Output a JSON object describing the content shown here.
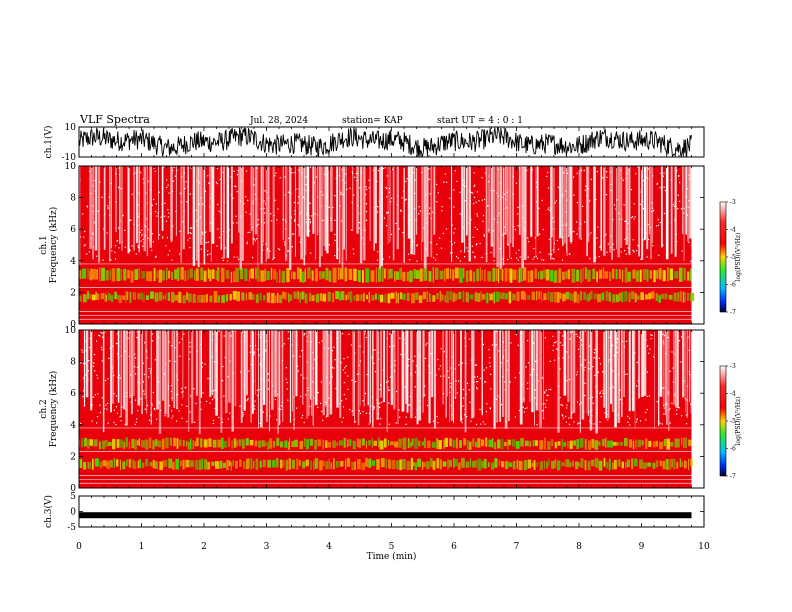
{
  "header": {
    "title": "VLF Spectra",
    "date": "Jul. 28, 2024",
    "station": "station= KAP",
    "start": "start UT =  4 : 0  : 1"
  },
  "chart_data": [
    {
      "type": "line",
      "panel": "ch1-waveform",
      "ylabel": "ch.1(V)",
      "ylim": [
        -10,
        10
      ],
      "xlim": [
        0,
        10
      ],
      "yticks": [
        "10",
        "-10"
      ],
      "data_end_min": 9.8
    },
    {
      "type": "heatmap",
      "panel": "ch1-spectrogram",
      "ylabel": "ch.1\nFrequency (kHz)",
      "ylim": [
        0,
        10
      ],
      "xlim": [
        0,
        10
      ],
      "yticks": [
        "0",
        "2",
        "4",
        "6",
        "8",
        "10"
      ],
      "data_end_min": 9.8,
      "colorbar": {
        "label": "log(PSD)(V²/Hz)",
        "ticks": [
          "-3",
          "-4",
          "-5",
          "-6",
          "-7"
        ],
        "range": [
          -7,
          -3
        ]
      }
    },
    {
      "type": "heatmap",
      "panel": "ch2-spectrogram",
      "ylabel": "ch.2\nFrequency (kHz)",
      "ylim": [
        0,
        10
      ],
      "xlim": [
        0,
        10
      ],
      "yticks": [
        "0",
        "2",
        "4",
        "6",
        "8",
        "10"
      ],
      "data_end_min": 9.8,
      "colorbar": {
        "label": "log(PSD)(V²/Hz)",
        "ticks": [
          "-3",
          "-4",
          "-5",
          "-6",
          "-7"
        ],
        "range": [
          -7,
          -3
        ]
      }
    },
    {
      "type": "line",
      "panel": "ch3-waveform",
      "ylabel": "ch.3(V)",
      "ylim": [
        -5,
        5
      ],
      "xlim": [
        0,
        10
      ],
      "yticks": [
        "5",
        "0",
        "-5"
      ],
      "xlabel": "Time (min)",
      "xticks": [
        "0",
        "1",
        "2",
        "3",
        "4",
        "5",
        "6",
        "7",
        "8",
        "9",
        "10"
      ],
      "level_v": -1.2,
      "data_end_min": 9.8
    }
  ]
}
